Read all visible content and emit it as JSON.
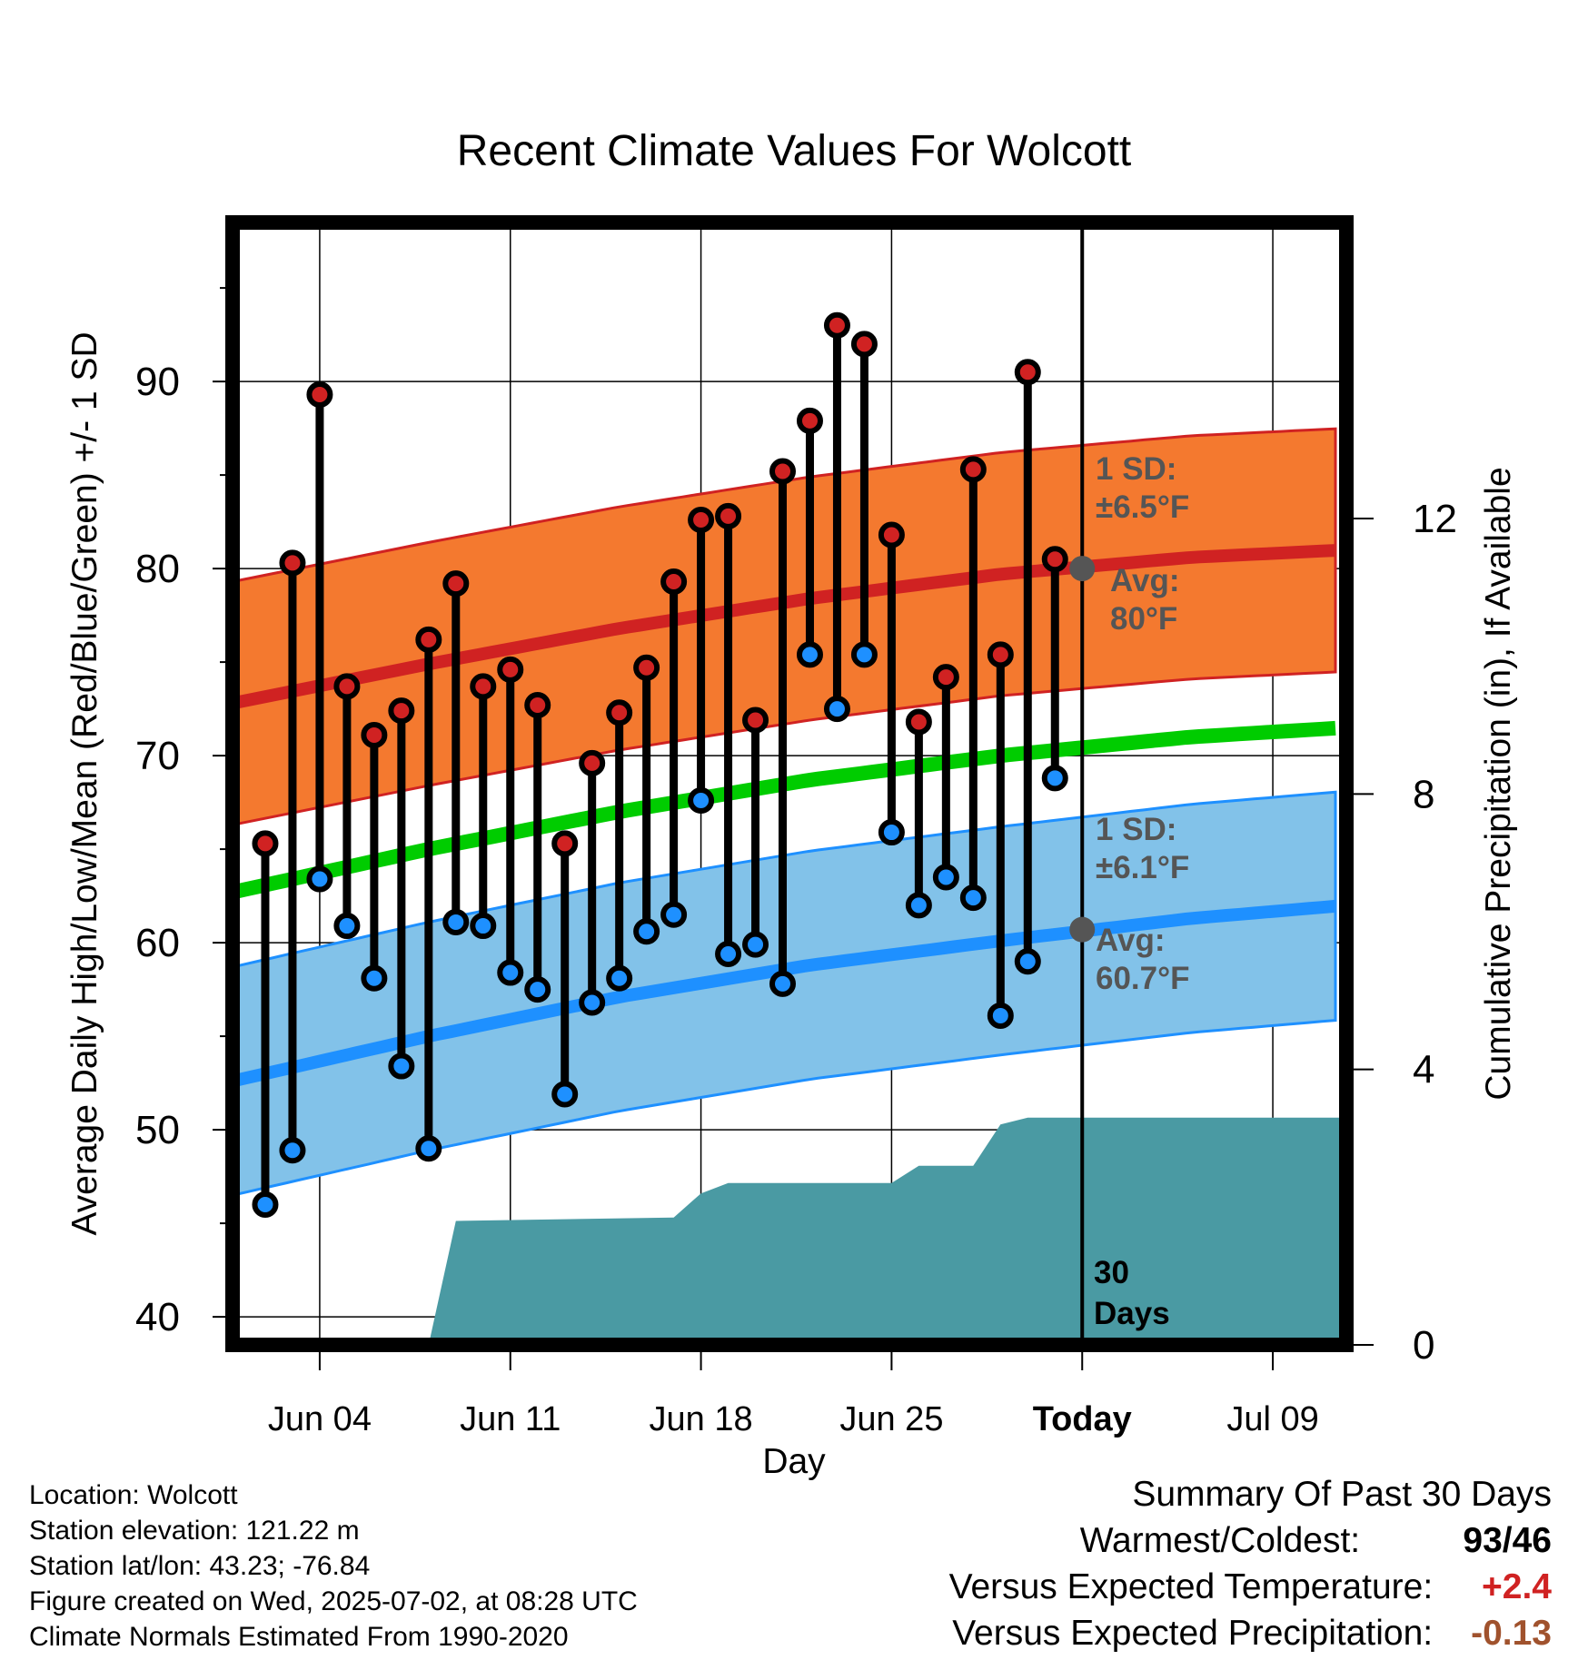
{
  "title": "Recent Climate Values For Wolcott",
  "xlabel": "Day",
  "ylabel_left": "Average Daily High/Low/Mean (Red/Blue/Green) +/- 1 SD",
  "ylabel_right": "Cumulative Precipitation (in), If Available",
  "colors": {
    "high_band": "#f4792f",
    "high_line": "#d02222",
    "low_band": "#82c2e9",
    "low_line": "#1e90ff",
    "mean_line": "#00cc00",
    "precip": "#4a9aa3",
    "avg_marker": "#555555",
    "annotation_text": "#555555",
    "temp_anomaly": "#d02222",
    "precip_anomaly": "#a0522d"
  },
  "annotations": {
    "high_sd_line1": "1 SD:",
    "high_sd_line2": "±6.5°F",
    "high_avg_line1": "Avg:",
    "high_avg_line2": "80°F",
    "low_sd_line1": "1 SD:",
    "low_sd_line2": "±6.1°F",
    "low_avg_line1": "Avg:",
    "low_avg_line2": "60.7°F",
    "days_line1": "30",
    "days_line2": "Days"
  },
  "chart_data": {
    "type": "line",
    "x_tick_labels": [
      "Jun 04",
      "Jun 11",
      "Jun 18",
      "Jun 25",
      "Today",
      "Jul 09"
    ],
    "x_tick_days": [
      4,
      11,
      18,
      25,
      32,
      39
    ],
    "xlim_days": [
      0.8,
      41.7
    ],
    "today_day": 32,
    "ylim_temp": [
      38.5,
      98.5
    ],
    "yticks_temp": [
      40,
      50,
      60,
      70,
      80,
      90
    ],
    "ylim_precip": [
      0,
      16.3
    ],
    "yticks_precip": [
      0,
      4,
      8,
      12
    ],
    "grid": true,
    "days": [
      2,
      3,
      4,
      5,
      6,
      7,
      8,
      9,
      10,
      11,
      12,
      13,
      14,
      15,
      16,
      17,
      18,
      19,
      20,
      21,
      22,
      23,
      24,
      25,
      26,
      27,
      28,
      29,
      30,
      31
    ],
    "daily_high": [
      65.3,
      80.3,
      89.3,
      73.7,
      71.1,
      72.4,
      76.2,
      79.2,
      73.7,
      74.6,
      72.7,
      65.3,
      69.6,
      72.3,
      74.7,
      79.3,
      82.6,
      82.8,
      71.9,
      85.2,
      87.9,
      93.0,
      92.0,
      81.8,
      71.8,
      74.2,
      85.3,
      75.4,
      90.5,
      80.5
    ],
    "daily_low": [
      46.0,
      48.9,
      63.4,
      60.9,
      58.1,
      53.4,
      49.0,
      61.1,
      60.9,
      58.4,
      57.5,
      51.9,
      56.8,
      58.1,
      60.6,
      61.5,
      67.6,
      59.4,
      59.9,
      57.8,
      75.4,
      72.5,
      75.4,
      65.9,
      62.0,
      63.5,
      62.4,
      56.1,
      59.0,
      68.8
    ],
    "normal_day": [
      0.8,
      8,
      15,
      22,
      29,
      36,
      41.7
    ],
    "normal_high": [
      72.8,
      74.9,
      76.8,
      78.4,
      79.7,
      80.6,
      81.0
    ],
    "normal_low": [
      52.6,
      55.0,
      57.1,
      58.8,
      60.1,
      61.3,
      62.0
    ],
    "normal_mean": [
      62.7,
      65.0,
      67.0,
      68.7,
      70.0,
      71.0,
      71.5
    ],
    "high_sd": 6.5,
    "low_sd": 6.1,
    "today_avg_high": 80,
    "today_avg_low": 60.7,
    "precip_day": [
      8,
      9,
      17,
      18,
      19,
      25,
      26,
      28,
      29,
      30,
      41.7
    ],
    "precip_cum": [
      0,
      1.8,
      1.85,
      2.2,
      2.35,
      2.35,
      2.6,
      2.6,
      3.2,
      3.3,
      3.3
    ]
  },
  "location_info": {
    "location": "Location: Wolcott",
    "elevation": "Station elevation: 121.22 m",
    "latlon": "Station lat/lon: 43.23; -76.84",
    "created": "Figure created on Wed, 2025-07-02, at 08:28 UTC",
    "normals": "Climate Normals Estimated From 1990-2020"
  },
  "summary": {
    "heading": "Summary Of Past 30 Days",
    "warm_cold_label": "Warmest/Coldest:",
    "warm_cold_value": "93/46",
    "temp_label": "Versus Expected Temperature:",
    "temp_value": "+2.4",
    "precip_label": "Versus Expected Precipitation:",
    "precip_value": "-0.13"
  }
}
